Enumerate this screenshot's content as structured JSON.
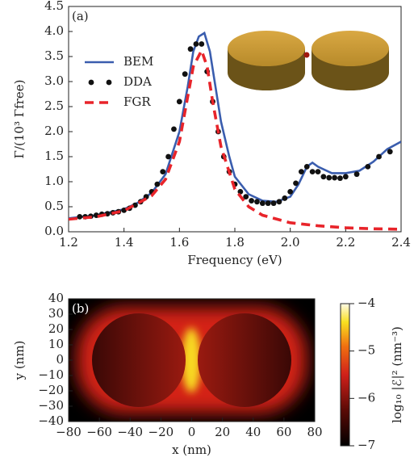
{
  "chart_data": [
    {
      "type": "line",
      "panel_label": "(a)",
      "xlabel": "Frequency (eV)",
      "ylabel": "Γ/(10³ Γfree)",
      "xlim": [
        1.2,
        2.4
      ],
      "ylim": [
        0,
        4.5
      ],
      "xticks": [
        1.2,
        1.4,
        1.6,
        1.8,
        {
          "value": 2,
          "label": "2.0"
        },
        2.2,
        2.4
      ],
      "yticks": [
        {
          "value": 0,
          "label": "0.0"
        },
        0.5,
        {
          "value": 1,
          "label": "1.0"
        },
        1.5,
        {
          "value": 2,
          "label": "2.0"
        },
        2.5,
        {
          "value": 3,
          "label": "3.0"
        },
        3.5,
        {
          "value": 4,
          "label": "4.0"
        },
        4.5
      ],
      "legend": "upper left",
      "series": [
        {
          "name": "BEM",
          "color": "#3a5dae",
          "style": "solid",
          "x": [
            1.2,
            1.3,
            1.4,
            1.45,
            1.5,
            1.55,
            1.6,
            1.63,
            1.65,
            1.67,
            1.69,
            1.71,
            1.73,
            1.75,
            1.78,
            1.8,
            1.85,
            1.9,
            1.95,
            2.0,
            2.03,
            2.06,
            2.08,
            2.1,
            2.15,
            2.2,
            2.25,
            2.3,
            2.35,
            2.4
          ],
          "values": [
            0.27,
            0.33,
            0.45,
            0.58,
            0.78,
            1.15,
            2.0,
            2.9,
            3.6,
            3.9,
            3.97,
            3.6,
            2.9,
            2.2,
            1.5,
            1.1,
            0.75,
            0.62,
            0.6,
            0.7,
            0.95,
            1.3,
            1.38,
            1.3,
            1.17,
            1.17,
            1.22,
            1.4,
            1.65,
            1.8
          ]
        },
        {
          "name": "DDA",
          "color": "#111111",
          "style": "dots",
          "x": [
            1.24,
            1.26,
            1.28,
            1.3,
            1.32,
            1.34,
            1.36,
            1.38,
            1.4,
            1.42,
            1.44,
            1.46,
            1.48,
            1.5,
            1.52,
            1.54,
            1.56,
            1.58,
            1.6,
            1.62,
            1.64,
            1.66,
            1.68,
            1.7,
            1.72,
            1.74,
            1.76,
            1.78,
            1.8,
            1.82,
            1.84,
            1.86,
            1.88,
            1.9,
            1.92,
            1.94,
            1.96,
            1.98,
            2.0,
            2.02,
            2.04,
            2.06,
            2.08,
            2.1,
            2.12,
            2.14,
            2.16,
            2.18,
            2.2,
            2.24,
            2.28,
            2.32,
            2.36
          ],
          "values": [
            0.3,
            0.3,
            0.31,
            0.33,
            0.35,
            0.36,
            0.38,
            0.4,
            0.43,
            0.47,
            0.53,
            0.6,
            0.7,
            0.8,
            0.95,
            1.2,
            1.5,
            2.05,
            2.6,
            3.15,
            3.65,
            3.75,
            3.75,
            3.2,
            2.6,
            2.0,
            1.5,
            1.2,
            0.95,
            0.8,
            0.7,
            0.62,
            0.6,
            0.57,
            0.57,
            0.57,
            0.6,
            0.67,
            0.8,
            0.97,
            1.2,
            1.3,
            1.2,
            1.2,
            1.1,
            1.08,
            1.08,
            1.07,
            1.1,
            1.15,
            1.3,
            1.5,
            1.6
          ]
        },
        {
          "name": "FGR",
          "color": "#e8242a",
          "style": "dashed",
          "x": [
            1.2,
            1.3,
            1.4,
            1.5,
            1.55,
            1.6,
            1.63,
            1.65,
            1.68,
            1.7,
            1.72,
            1.75,
            1.8,
            1.85,
            1.9,
            2.0,
            2.1,
            2.2,
            2.3,
            2.4
          ],
          "values": [
            0.25,
            0.3,
            0.42,
            0.72,
            1.05,
            1.8,
            2.7,
            3.3,
            3.62,
            3.3,
            2.6,
            1.7,
            0.85,
            0.5,
            0.33,
            0.18,
            0.12,
            0.08,
            0.06,
            0.05
          ]
        }
      ]
    },
    {
      "type": "heatmap",
      "panel_label": "(b)",
      "xlabel": "x (nm)",
      "ylabel": "y (nm)",
      "xlim": [
        -80,
        80
      ],
      "ylim": [
        -40,
        40
      ],
      "xticks": [
        {
          "value": -80,
          "label": "−80"
        },
        {
          "value": -60,
          "label": "−60"
        },
        {
          "value": -40,
          "label": "−40"
        },
        {
          "value": -20,
          "label": "−20"
        },
        0,
        20,
        40,
        60,
        80
      ],
      "yticks": [
        {
          "value": -40,
          "label": "−40"
        },
        {
          "value": -30,
          "label": "−30"
        },
        {
          "value": -20,
          "label": "−20"
        },
        {
          "value": -10,
          "label": "−10"
        },
        0,
        10,
        20,
        30,
        40
      ],
      "colorbar": {
        "label": "log₁₀ |ℰ|² (nm⁻³)",
        "lim": [
          -7,
          -4
        ],
        "ticks": [
          {
            "value": -7,
            "label": "−7"
          },
          {
            "value": -6,
            "label": "−6"
          },
          {
            "value": -5,
            "label": "−5"
          },
          {
            "value": -4,
            "label": "−4"
          }
        ]
      }
    }
  ]
}
